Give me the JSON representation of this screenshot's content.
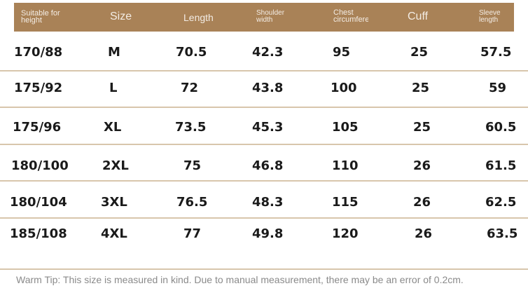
{
  "table": {
    "headers": [
      "Suitable for\nheight",
      "Size",
      "Length",
      "Shoulder\nwidth",
      "Chest\ncircumference",
      "Cuff",
      "Sleeve\nlength"
    ],
    "rows": [
      [
        "170/88",
        "M",
        "70.5",
        "42.3",
        "95",
        "25",
        "57.5"
      ],
      [
        "175/92",
        "L",
        "72",
        "43.8",
        "100",
        "25",
        "59"
      ],
      [
        "175/96",
        "XL",
        "73.5",
        "45.3",
        "105",
        "25",
        "60.5"
      ],
      [
        "180/100",
        "2XL",
        "75",
        "46.8",
        "110",
        "26",
        "61.5"
      ],
      [
        "180/104",
        "3XL",
        "76.5",
        "48.3",
        "115",
        "26",
        "62.5"
      ],
      [
        "185/108",
        "4XL",
        "77",
        "49.8",
        "120",
        "26",
        "63.5"
      ]
    ]
  },
  "tip": "Warm Tip: This size is measured in kind. Due to manual measurement, there may be an error of 0.2cm.",
  "colors": {
    "header_bg": "#a98257",
    "header_text": "#f3ece4",
    "divider": "#d8c6ac",
    "cell_text": "#1a1a1a",
    "tip_text": "#8a8a8a"
  }
}
